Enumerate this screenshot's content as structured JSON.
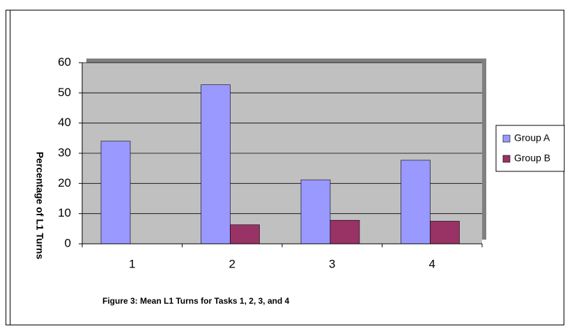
{
  "chart_data": {
    "type": "bar",
    "caption": "Figure 3:  Mean L1 Turns for Tasks 1, 2, 3, and 4",
    "y_label": "Percentage of L1 Turns",
    "categories": [
      "1",
      "2",
      "3",
      "4"
    ],
    "series": [
      {
        "name": "Group A",
        "color": "#9999ff",
        "values": [
          34,
          52.7,
          21.2,
          27.7
        ]
      },
      {
        "name": "Group B",
        "color": "#993366",
        "values": [
          0,
          6.3,
          7.8,
          7.5
        ]
      }
    ],
    "ylim": [
      0,
      60
    ],
    "yticks": [
      0,
      10,
      20,
      30,
      40,
      50,
      60
    ],
    "grid": true,
    "legend": "right"
  }
}
